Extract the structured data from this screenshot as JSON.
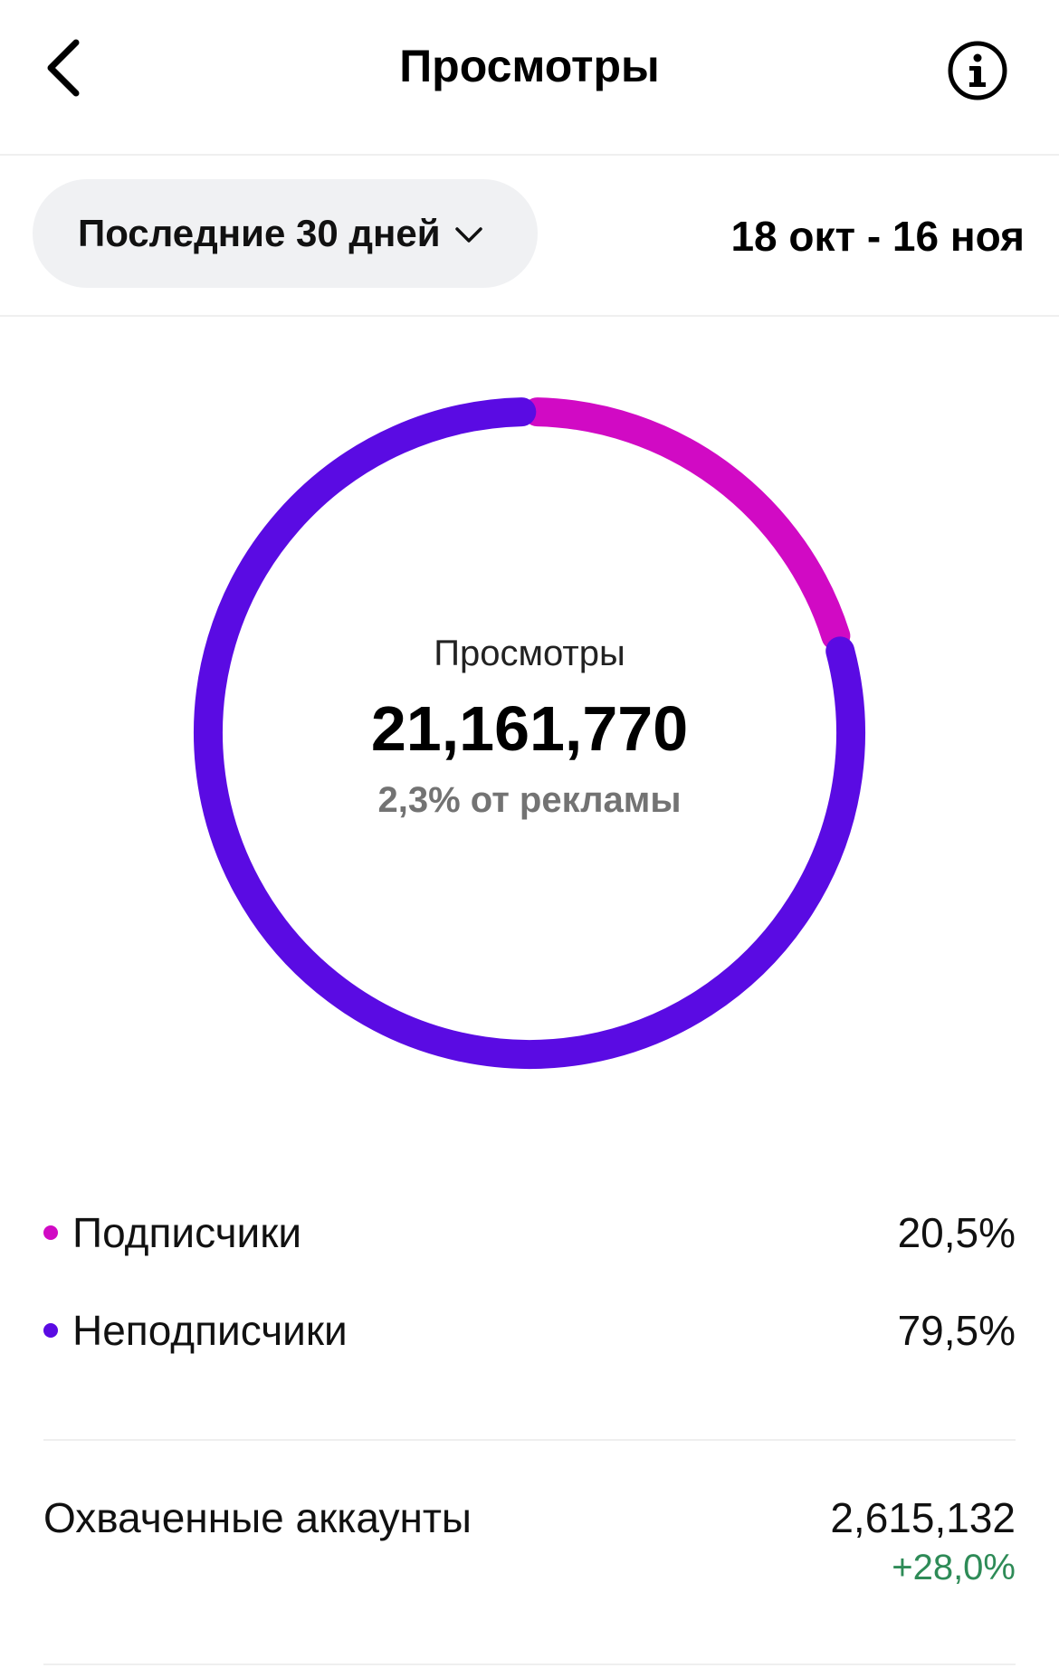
{
  "header": {
    "title": "Просмотры",
    "back_icon": "chevron-left-icon",
    "info_icon": "info-icon"
  },
  "filter": {
    "range_label": "Последние 30 дней",
    "dropdown_icon": "chevron-down-icon",
    "date_range": "18 окт - 16 ноя"
  },
  "chart_data": {
    "type": "pie",
    "center_label": "Просмотры",
    "center_value": "21,161,770",
    "center_subtitle": "2,3% от рекламы",
    "series": [
      {
        "name": "Подписчики",
        "value": 20.5,
        "label": "20,5%",
        "color": "#d10ac4"
      },
      {
        "name": "Неподписчики",
        "value": 79.5,
        "label": "79,5%",
        "color": "#5a0be3"
      }
    ]
  },
  "reach": {
    "label": "Охваченные аккаунты",
    "value": "2,615,132",
    "delta": "+28,0%",
    "delta_color": "#2e8b57"
  }
}
